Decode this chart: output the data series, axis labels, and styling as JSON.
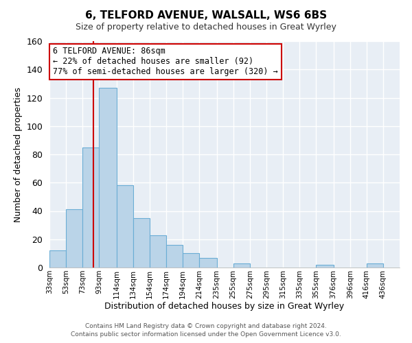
{
  "title": "6, TELFORD AVENUE, WALSALL, WS6 6BS",
  "subtitle": "Size of property relative to detached houses in Great Wyrley",
  "xlabel": "Distribution of detached houses by size in Great Wyrley",
  "ylabel": "Number of detached properties",
  "footer_line1": "Contains HM Land Registry data © Crown copyright and database right 2024.",
  "footer_line2": "Contains public sector information licensed under the Open Government Licence v3.0.",
  "bar_labels": [
    "33sqm",
    "53sqm",
    "73sqm",
    "93sqm",
    "114sqm",
    "134sqm",
    "154sqm",
    "174sqm",
    "194sqm",
    "214sqm",
    "235sqm",
    "255sqm",
    "275sqm",
    "295sqm",
    "315sqm",
    "335sqm",
    "355sqm",
    "376sqm",
    "396sqm",
    "416sqm",
    "436sqm"
  ],
  "bar_values": [
    12,
    41,
    85,
    127,
    58,
    35,
    23,
    16,
    10,
    7,
    0,
    3,
    0,
    0,
    0,
    0,
    2,
    0,
    0,
    3,
    0
  ],
  "bin_edges": [
    33,
    53,
    73,
    93,
    114,
    134,
    154,
    174,
    194,
    214,
    235,
    255,
    275,
    295,
    315,
    335,
    355,
    376,
    396,
    416,
    436,
    456
  ],
  "bar_color": "#bad4e8",
  "bar_edge_color": "#6aadd5",
  "ylim": [
    0,
    160
  ],
  "yticks": [
    0,
    20,
    40,
    60,
    80,
    100,
    120,
    140,
    160
  ],
  "vline_x": 86,
  "vline_color": "#cc0000",
  "annotation_title": "6 TELFORD AVENUE: 86sqm",
  "annotation_line1": "← 22% of detached houses are smaller (92)",
  "annotation_line2": "77% of semi-detached houses are larger (320) →",
  "annotation_box_color": "#ffffff",
  "annotation_box_edge": "#cc0000",
  "bg_color": "#ffffff",
  "plot_bg_color": "#e8eef5",
  "grid_color": "#ffffff"
}
